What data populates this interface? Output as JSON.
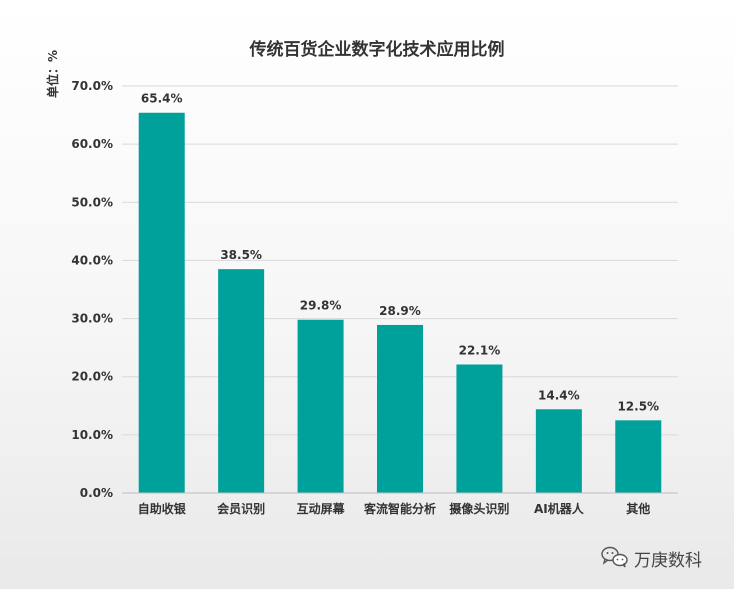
{
  "chart_data": {
    "type": "bar",
    "title": "传统百货企业数字化技术应用比例",
    "unit_label": "单位：%",
    "categories": [
      "自助收银",
      "会员识别",
      "互动屏幕",
      "客流智能分析",
      "摄像头识别",
      "AI机器人",
      "其他"
    ],
    "values": [
      65.4,
      38.5,
      29.8,
      28.9,
      22.1,
      14.4,
      12.5
    ],
    "data_labels": [
      "65.4%",
      "38.5%",
      "29.8%",
      "28.9%",
      "22.1%",
      "14.4%",
      "12.5%"
    ],
    "ylim": [
      0,
      70
    ],
    "yticks": [
      0,
      10,
      20,
      30,
      40,
      50,
      60,
      70
    ],
    "ytick_labels": [
      "0.0%",
      "10.0%",
      "20.0%",
      "30.0%",
      "40.0%",
      "50.0%",
      "60.0%",
      "70.0%"
    ],
    "bar_color": "#00a19b",
    "grid": true,
    "legend": "none"
  },
  "watermark": {
    "text": "万庚数科",
    "icon": "wechat-icon"
  }
}
